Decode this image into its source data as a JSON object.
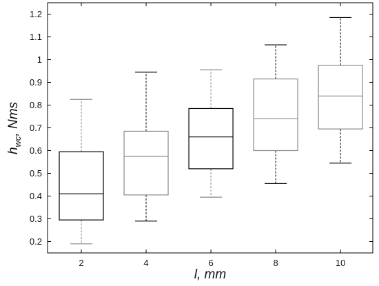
{
  "chart_data": {
    "type": "box",
    "xlabel": "l, mm",
    "ylabel_main": "h",
    "ylabel_sub": "wc",
    "ylabel_rest": ", Nms",
    "categories": [
      "2",
      "4",
      "6",
      "8",
      "10"
    ],
    "yticks": [
      "0.2",
      "0.3",
      "0.4",
      "0.5",
      "0.6",
      "0.7",
      "0.8",
      "0.9",
      "1",
      "1.1",
      "1.2"
    ],
    "ylim": [
      0.15,
      1.25
    ],
    "grid": false,
    "boxes": [
      {
        "category": "2",
        "min": 0.19,
        "q1": 0.295,
        "median": 0.41,
        "q3": 0.595,
        "max": 0.825,
        "color": "#000000",
        "whisker_color": "#888888"
      },
      {
        "category": "4",
        "min": 0.29,
        "q1": 0.405,
        "median": 0.575,
        "q3": 0.685,
        "max": 0.945,
        "color": "#888888",
        "whisker_color": "#000000"
      },
      {
        "category": "6",
        "min": 0.395,
        "q1": 0.52,
        "median": 0.66,
        "q3": 0.785,
        "max": 0.955,
        "color": "#000000",
        "whisker_color": "#888888"
      },
      {
        "category": "8",
        "min": 0.455,
        "q1": 0.6,
        "median": 0.74,
        "q3": 0.915,
        "max": 1.065,
        "color": "#888888",
        "whisker_color": "#000000"
      },
      {
        "category": "10",
        "min": 0.545,
        "q1": 0.695,
        "median": 0.84,
        "q3": 0.975,
        "max": 1.185,
        "color": "#888888",
        "whisker_color": "#000000"
      }
    ]
  }
}
